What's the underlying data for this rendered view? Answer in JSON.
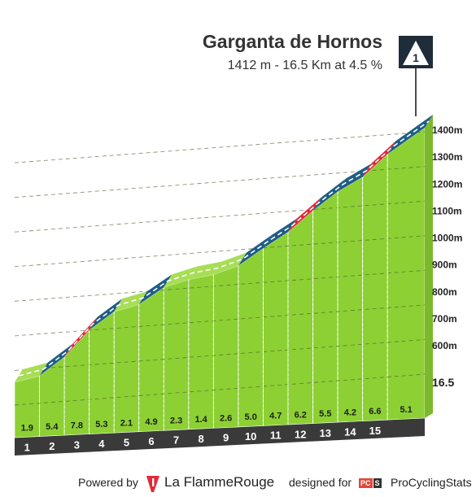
{
  "header": {
    "climb_name": "Garganta de Hornos",
    "climb_stats": "1412 m - 16.5 Km at 4.5 %",
    "category": "1"
  },
  "footer": {
    "powered_by": "Powered by",
    "flamme_brand": "La FlammeRouge",
    "designed_for": "designed for",
    "pcs_badge_1": "PC",
    "pcs_badge_2": "S",
    "pcs_brand": "ProCyclingStats"
  },
  "colors": {
    "terrain_green": "#8dd034",
    "terrain_top_green": "#a8dd57",
    "side_grey": "#aea79a",
    "base_dark": "#3a3a3a",
    "gradient_green": "#8dcf34",
    "gradient_blue": "#1e5d85",
    "gradient_red": "#e12a36"
  },
  "chart_data": {
    "type": "area",
    "title": "Garganta de Hornos",
    "subtitle": "1412 m - 16.5 Km at 4.5 %",
    "x_unit": "km",
    "y_unit": "m",
    "xlim": [
      0,
      16.5
    ],
    "ylim": [
      620,
      1412
    ],
    "start_label": "16.5",
    "summit_elevation": 1412,
    "km_markers": [
      "1",
      "2",
      "3",
      "4",
      "5",
      "6",
      "7",
      "8",
      "9",
      "10",
      "11",
      "12",
      "13",
      "14",
      "15"
    ],
    "segment_gradients": [
      1.9,
      5.4,
      7.8,
      5.3,
      2.1,
      4.9,
      2.3,
      1.4,
      2.6,
      5.0,
      4.7,
      6.2,
      5.5,
      4.2,
      6.6,
      5.1
    ],
    "segment_gradient_labels": [
      "1.9",
      "5.4",
      "7.8",
      "5.3",
      "2.1",
      "4.9",
      "2.3",
      "1.4",
      "2.6",
      "5.0",
      "4.7",
      "6.2",
      "5.5",
      "4.2",
      "6.6",
      "5.1"
    ],
    "segment_end_km": [
      1,
      2,
      3,
      4,
      5,
      6,
      7,
      8,
      9,
      10,
      11,
      12,
      13,
      14,
      15,
      16.5
    ],
    "elevation_ticks": [
      600,
      700,
      800,
      900,
      1000,
      1100,
      1200,
      1300,
      1400
    ],
    "elevation_tick_labels": [
      "600m",
      "700m",
      "800m",
      "900m",
      "1000m",
      "1100m",
      "1200m",
      "1300m",
      "1400m"
    ],
    "grid": true
  }
}
